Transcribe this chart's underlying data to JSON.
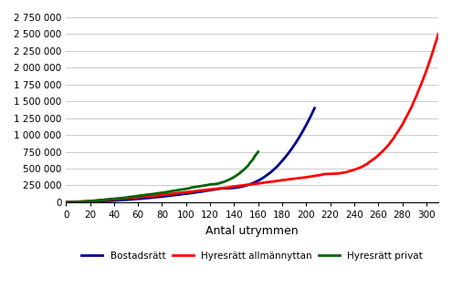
{
  "xlabel": "Antal utrymmen",
  "xlim": [
    0,
    310
  ],
  "ylim": [
    0,
    2750000
  ],
  "xticks": [
    0,
    20,
    40,
    60,
    80,
    100,
    120,
    140,
    160,
    180,
    200,
    220,
    240,
    260,
    280,
    300
  ],
  "yticks": [
    0,
    250000,
    500000,
    750000,
    1000000,
    1250000,
    1500000,
    1750000,
    2000000,
    2250000,
    2500000,
    2750000
  ],
  "ytick_labels": [
    "0",
    "250 000",
    "500 000",
    "750 000",
    "1 000 000",
    "1 250 000",
    "1 500 000",
    "1 750 000",
    "2 000 000",
    "2 250 000",
    "2 500 000",
    "2 750 000"
  ],
  "legend": [
    {
      "label": "Bostadsrätt",
      "color": "#00008B",
      "linewidth": 2.0
    },
    {
      "label": "Hyresrätt allmännyttan",
      "color": "#FF0000",
      "linewidth": 2.0
    },
    {
      "label": "Hyresrätt privat",
      "color": "#006400",
      "linewidth": 2.0
    }
  ],
  "background_color": "#FFFFFF",
  "grid_color": "#CCCCCC"
}
